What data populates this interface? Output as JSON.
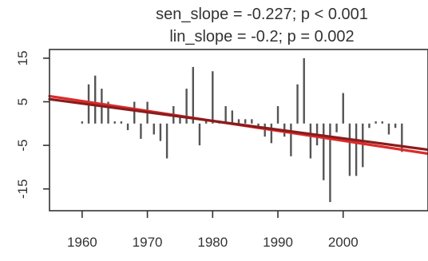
{
  "chart_data": {
    "type": "bar",
    "title_lines": [
      "sen_slope = -0.227; p < 0.001",
      "lin_slope = -0.2; p = 0.002"
    ],
    "xlabel": "",
    "ylabel": "",
    "xlim": [
      1955,
      2013
    ],
    "ylim": [
      -20,
      17
    ],
    "x_ticks": [
      1960,
      1970,
      1980,
      1990,
      2000
    ],
    "y_ticks": [
      15,
      5,
      -5,
      -15
    ],
    "grid": false,
    "years": [
      1960,
      1961,
      1962,
      1963,
      1964,
      1965,
      1966,
      1967,
      1968,
      1969,
      1970,
      1971,
      1972,
      1973,
      1974,
      1975,
      1976,
      1977,
      1978,
      1979,
      1980,
      1981,
      1982,
      1983,
      1984,
      1985,
      1986,
      1987,
      1988,
      1989,
      1990,
      1991,
      1992,
      1993,
      1994,
      1995,
      1996,
      1997,
      1998,
      1999,
      2000,
      2001,
      2002,
      2003,
      2004,
      2005,
      2006,
      2007,
      2008,
      2009
    ],
    "values": [
      0.5,
      9,
      11,
      8,
      5,
      0.5,
      0.5,
      -1.5,
      5,
      -3.5,
      5,
      -2.5,
      -4,
      -8,
      4,
      2,
      8,
      13,
      -5,
      1,
      12,
      0.5,
      4,
      3,
      1,
      1,
      1,
      -1,
      -3,
      -4.5,
      4,
      -3,
      -7.5,
      9,
      15,
      -8,
      -5,
      -13,
      -18,
      -2,
      7,
      -12,
      -12,
      -10,
      -1,
      0.5,
      0.5,
      -2.5,
      -1,
      -6.5
    ],
    "trend_lines": [
      {
        "name": "sen_slope",
        "color": "#dd2a2a",
        "start": [
          1955,
          6.3
        ],
        "end": [
          2013,
          -6.9
        ]
      },
      {
        "name": "lin_slope",
        "color": "#8a1c1c",
        "start": [
          1955,
          5.6
        ],
        "end": [
          2013,
          -6.0
        ]
      }
    ],
    "colors": {
      "bars": "#555555",
      "axis": "#333333"
    }
  }
}
